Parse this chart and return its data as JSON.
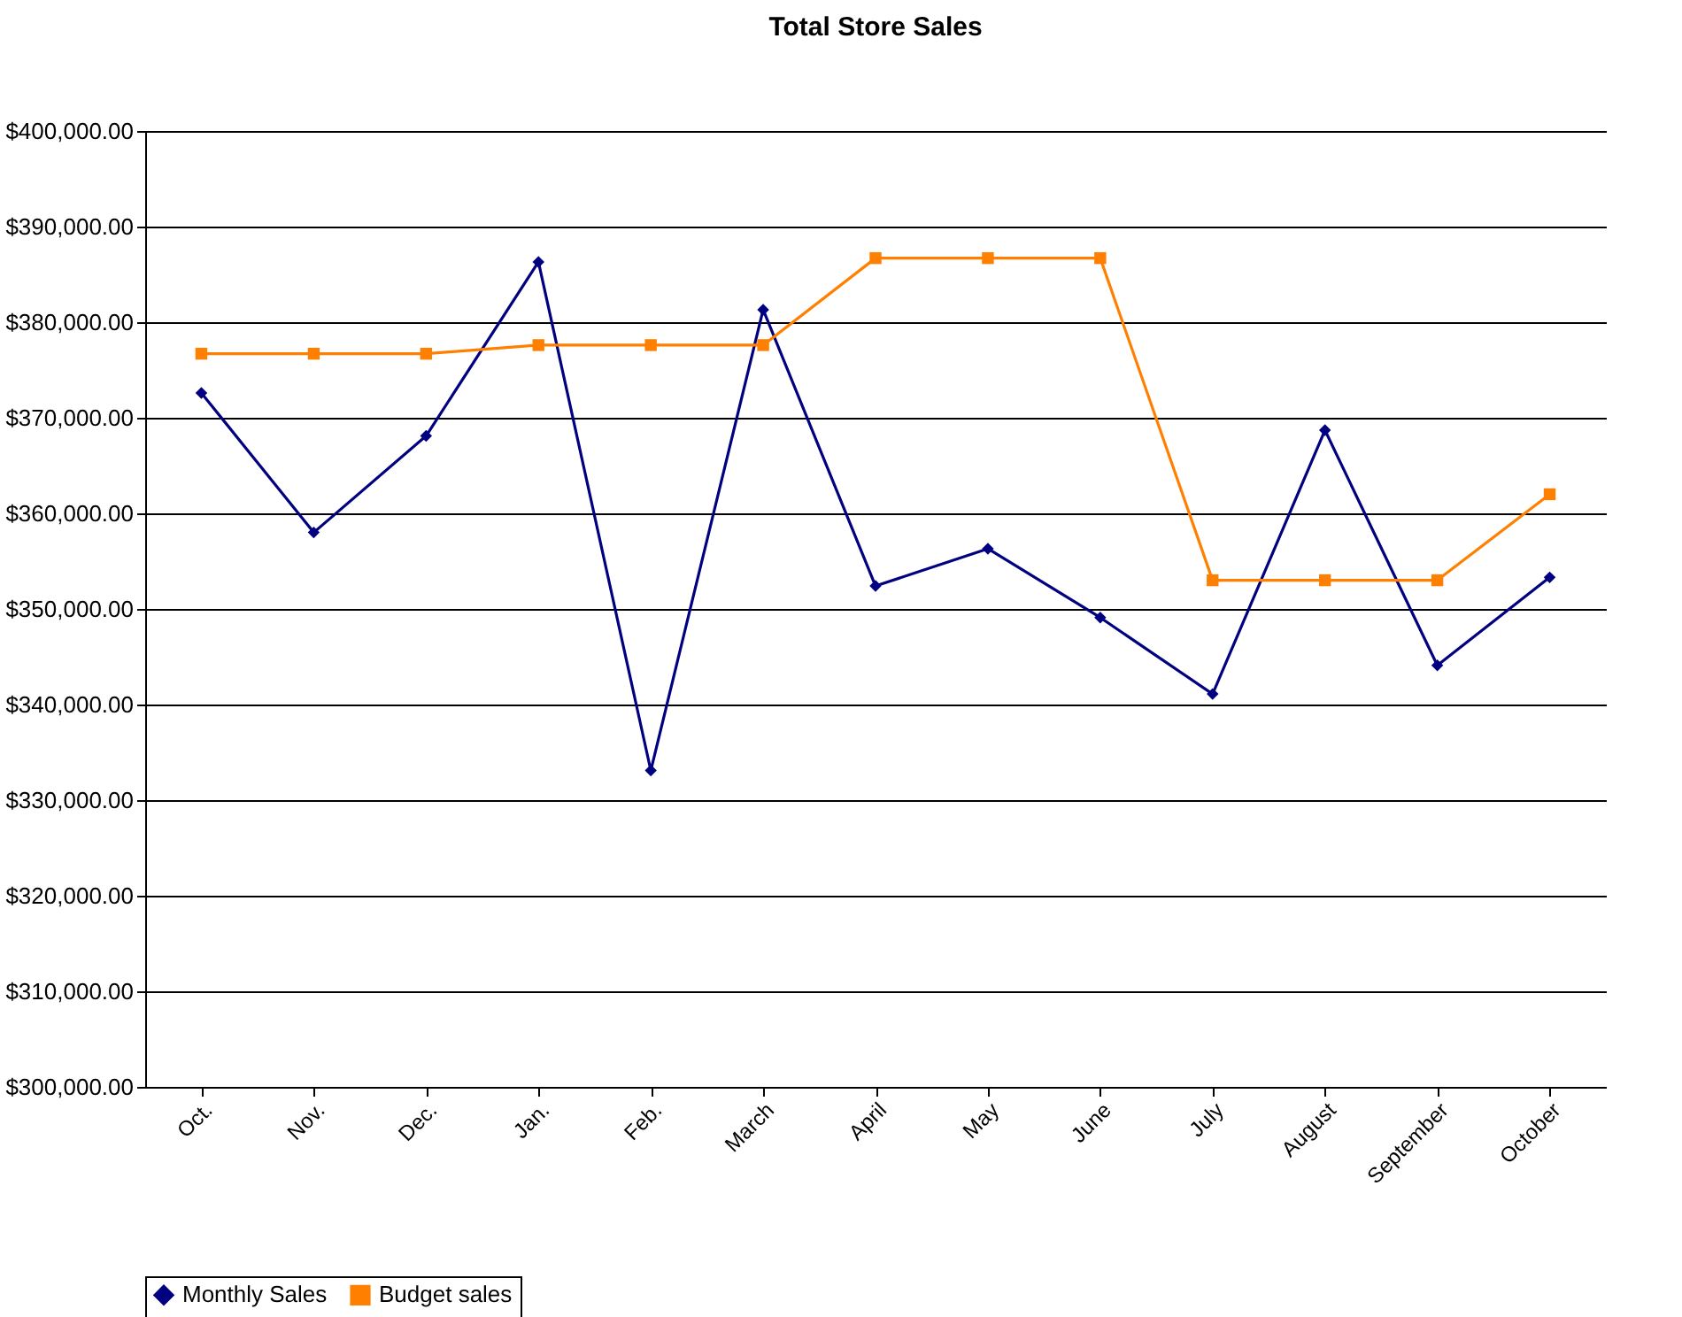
{
  "chart_data": {
    "type": "line",
    "title": "Total Store Sales",
    "categories": [
      "Oct.",
      "Nov.",
      "Dec.",
      "Jan.",
      "Feb.",
      "March",
      "April",
      "May",
      "June",
      "July",
      "August",
      "September",
      "October"
    ],
    "series": [
      {
        "name": "Monthly Sales",
        "color": "#000080",
        "marker": "diamond",
        "values": [
          372600,
          358000,
          368100,
          386300,
          333100,
          381300,
          352400,
          356300,
          349100,
          341100,
          368700,
          344100,
          353300
        ]
      },
      {
        "name": "Budget sales",
        "color": "#ff8000",
        "marker": "square",
        "values": [
          376700,
          376700,
          376700,
          377600,
          377600,
          377600,
          386700,
          386700,
          386700,
          353000,
          353000,
          353000,
          362000
        ]
      }
    ],
    "ylim": [
      300000,
      400000
    ],
    "yticks": [
      {
        "value": 300000,
        "label": "$300,000.00"
      },
      {
        "value": 310000,
        "label": "$310,000.00"
      },
      {
        "value": 320000,
        "label": "$320,000.00"
      },
      {
        "value": 330000,
        "label": "$330,000.00"
      },
      {
        "value": 340000,
        "label": "$340,000.00"
      },
      {
        "value": 350000,
        "label": "$350,000.00"
      },
      {
        "value": 360000,
        "label": "$360,000.00"
      },
      {
        "value": 370000,
        "label": "$370,000.00"
      },
      {
        "value": 380000,
        "label": "$380,000.00"
      },
      {
        "value": 390000,
        "label": "$390,000.00"
      },
      {
        "value": 400000,
        "label": "$400,000.00"
      }
    ],
    "grid": "y",
    "legend": "bottom",
    "line_style": "solid"
  }
}
